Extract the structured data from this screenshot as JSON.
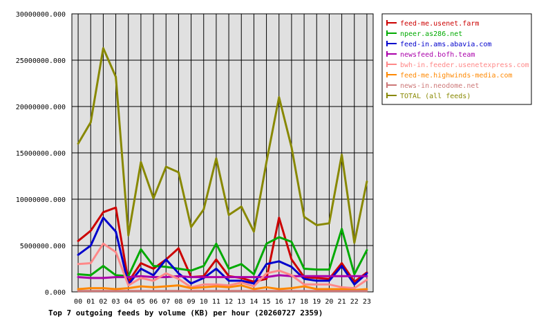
{
  "chart_data": {
    "type": "line",
    "title": "Top 7 outgoing feeds by volume (KB) per hour (20260727 2359)",
    "xlabel": "",
    "ylabel": "",
    "categories": [
      "00",
      "01",
      "02",
      "03",
      "04",
      "05",
      "06",
      "07",
      "08",
      "09",
      "10",
      "11",
      "12",
      "13",
      "14",
      "15",
      "16",
      "17",
      "18",
      "19",
      "20",
      "21",
      "22",
      "23"
    ],
    "ylim": [
      0,
      30000000
    ],
    "yticks": [
      0,
      5000000,
      10000000,
      15000000,
      20000000,
      25000000,
      30000000
    ],
    "ytick_labels": [
      "0.000",
      "5000000.000",
      "10000000.000",
      "15000000.000",
      "20000000.000",
      "25000000.000",
      "30000000.000"
    ],
    "grid": true,
    "legend_position": "top-right",
    "series": [
      {
        "name": "feed-me.usenet.farm",
        "color": "#cc0000",
        "values": [
          5500000,
          6600000,
          8600000,
          9100000,
          1100000,
          3100000,
          2500000,
          3500000,
          4700000,
          1600000,
          1700000,
          3500000,
          1700000,
          1500000,
          1100000,
          1400000,
          8000000,
          3500000,
          1600000,
          1500000,
          1400000,
          3100000,
          1100000,
          2100000
        ]
      },
      {
        "name": "npeer.as286.net",
        "color": "#00aa00",
        "values": [
          1900000,
          1800000,
          2800000,
          1800000,
          1700000,
          4600000,
          2800000,
          2700000,
          2500000,
          2300000,
          2800000,
          5200000,
          2500000,
          3000000,
          1900000,
          5200000,
          5900000,
          5400000,
          2500000,
          2400000,
          2400000,
          6800000,
          1900000,
          4500000
        ]
      },
      {
        "name": "feed-in.ams.abavia.com",
        "color": "#0000cc",
        "values": [
          4000000,
          5000000,
          8000000,
          6500000,
          800000,
          2500000,
          1800000,
          3500000,
          2000000,
          900000,
          1500000,
          2500000,
          1200000,
          1200000,
          900000,
          3000000,
          3300000,
          2700000,
          1400000,
          1200000,
          1200000,
          2800000,
          800000,
          2000000
        ]
      },
      {
        "name": "newsfeed.bofh.team",
        "color": "#aa00aa",
        "values": [
          1600000,
          1500000,
          1500000,
          1600000,
          1600000,
          1700000,
          1600000,
          1600000,
          1700000,
          1600000,
          1600000,
          1600000,
          1600000,
          1600000,
          1600000,
          1600000,
          1800000,
          1700000,
          1700000,
          1700000,
          1700000,
          1700000,
          1700000,
          1700000
        ]
      },
      {
        "name": "bwh-in.feeder.usenetexpress.com",
        "color": "#ff8888",
        "values": [
          3000000,
          3100000,
          5200000,
          4300000,
          700000,
          1500000,
          1200000,
          2000000,
          1400000,
          500000,
          800000,
          800000,
          700000,
          1000000,
          600000,
          2000000,
          2300000,
          1800000,
          800000,
          800000,
          800000,
          500000,
          400000,
          1300000
        ]
      },
      {
        "name": "feed-me.highwinds-media.com",
        "color": "#ff8800",
        "values": [
          300000,
          400000,
          400000,
          300000,
          400000,
          600000,
          500000,
          600000,
          700000,
          400000,
          500000,
          600000,
          500000,
          700000,
          300000,
          500000,
          300000,
          400000,
          600000,
          300000,
          300000,
          300000,
          200000,
          300000
        ]
      },
      {
        "name": "news-in.neodome.net",
        "color": "#cc7777",
        "values": [
          100000,
          100000,
          100000,
          100000,
          100000,
          100000,
          100000,
          100000,
          100000,
          100000,
          100000,
          100000,
          100000,
          100000,
          100000,
          100000,
          100000,
          100000,
          100000,
          100000,
          100000,
          100000,
          100000,
          100000
        ]
      },
      {
        "name": "TOTAL (all feeds)",
        "color": "#888800",
        "values": [
          16000000,
          18300000,
          26300000,
          23200000,
          6100000,
          14000000,
          10100000,
          13500000,
          12900000,
          7000000,
          8900000,
          14400000,
          8300000,
          9200000,
          6500000,
          14000000,
          21000000,
          15600000,
          8100000,
          7200000,
          7400000,
          14800000,
          5300000,
          11900000
        ]
      }
    ]
  }
}
